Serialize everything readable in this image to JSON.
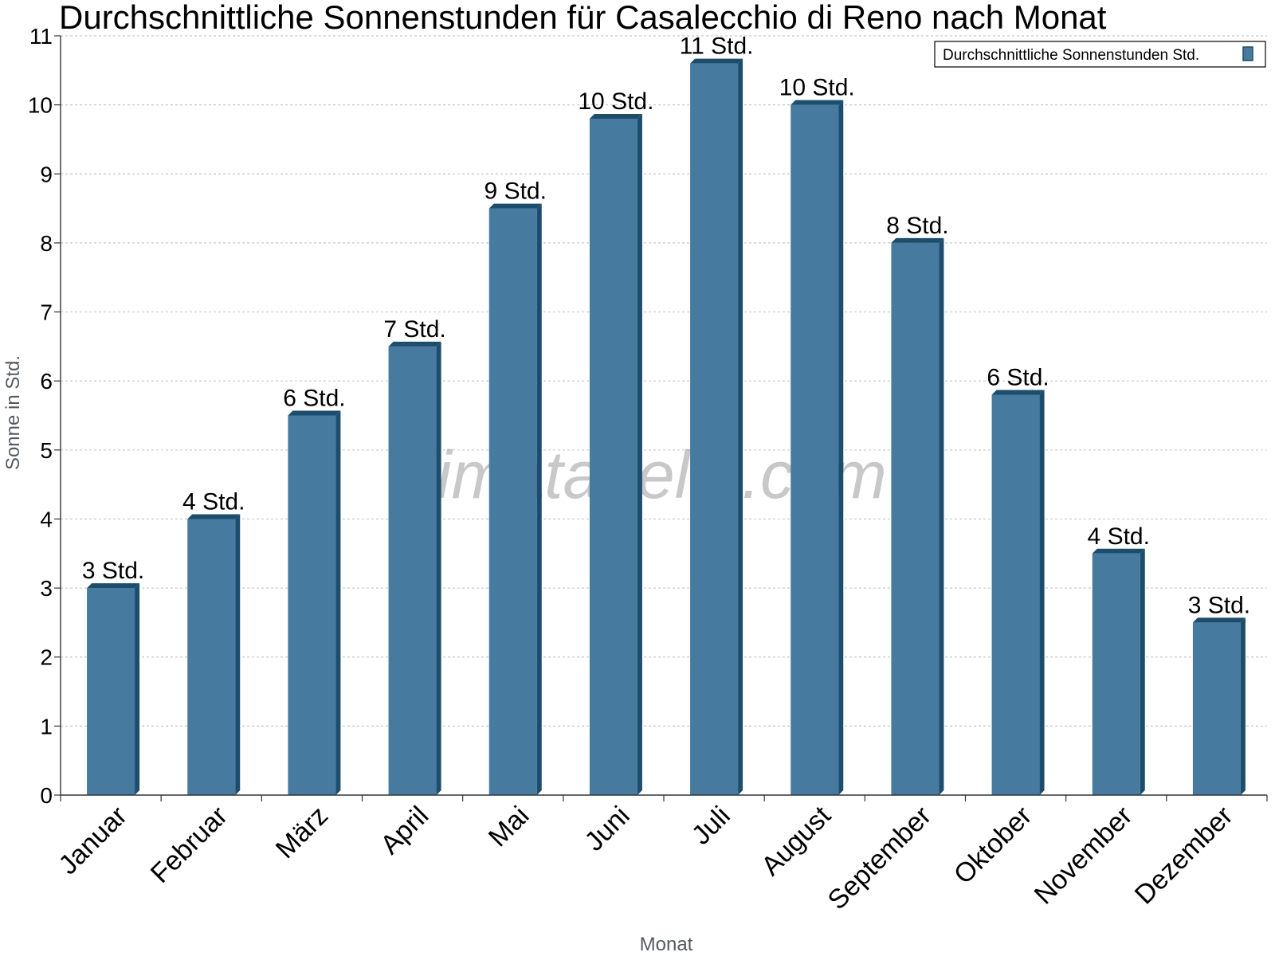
{
  "chart_data": {
    "type": "bar",
    "title": "Durchschnittliche Sonnenstunden für Casalecchio di Reno nach Monat",
    "xlabel": "Monat",
    "ylabel": "Sonne in Std.",
    "ylim": [
      0,
      11
    ],
    "yticks": [
      0,
      1,
      2,
      3,
      4,
      5,
      6,
      7,
      8,
      9,
      10,
      11
    ],
    "grid": true,
    "legend_position": "top-right",
    "categories": [
      "Januar",
      "Februar",
      "März",
      "April",
      "Mai",
      "Juni",
      "Juli",
      "August",
      "September",
      "Oktober",
      "November",
      "Dezember"
    ],
    "series": [
      {
        "name": "Durchschnittliche Sonnenstunden Std.",
        "values": [
          3.0,
          4.0,
          5.5,
          6.5,
          8.5,
          9.8,
          10.6,
          10.0,
          8.0,
          5.8,
          3.5,
          2.5
        ],
        "labels": [
          "3 Std.",
          "4 Std.",
          "6 Std.",
          "7 Std.",
          "9 Std.",
          "10 Std.",
          "11 Std.",
          "10 Std.",
          "8 Std.",
          "6 Std.",
          "4 Std.",
          "3 Std."
        ],
        "color": "#467a9e",
        "shade_color": "#1d4d6d"
      }
    ]
  },
  "watermark": "klimatabelle.com"
}
